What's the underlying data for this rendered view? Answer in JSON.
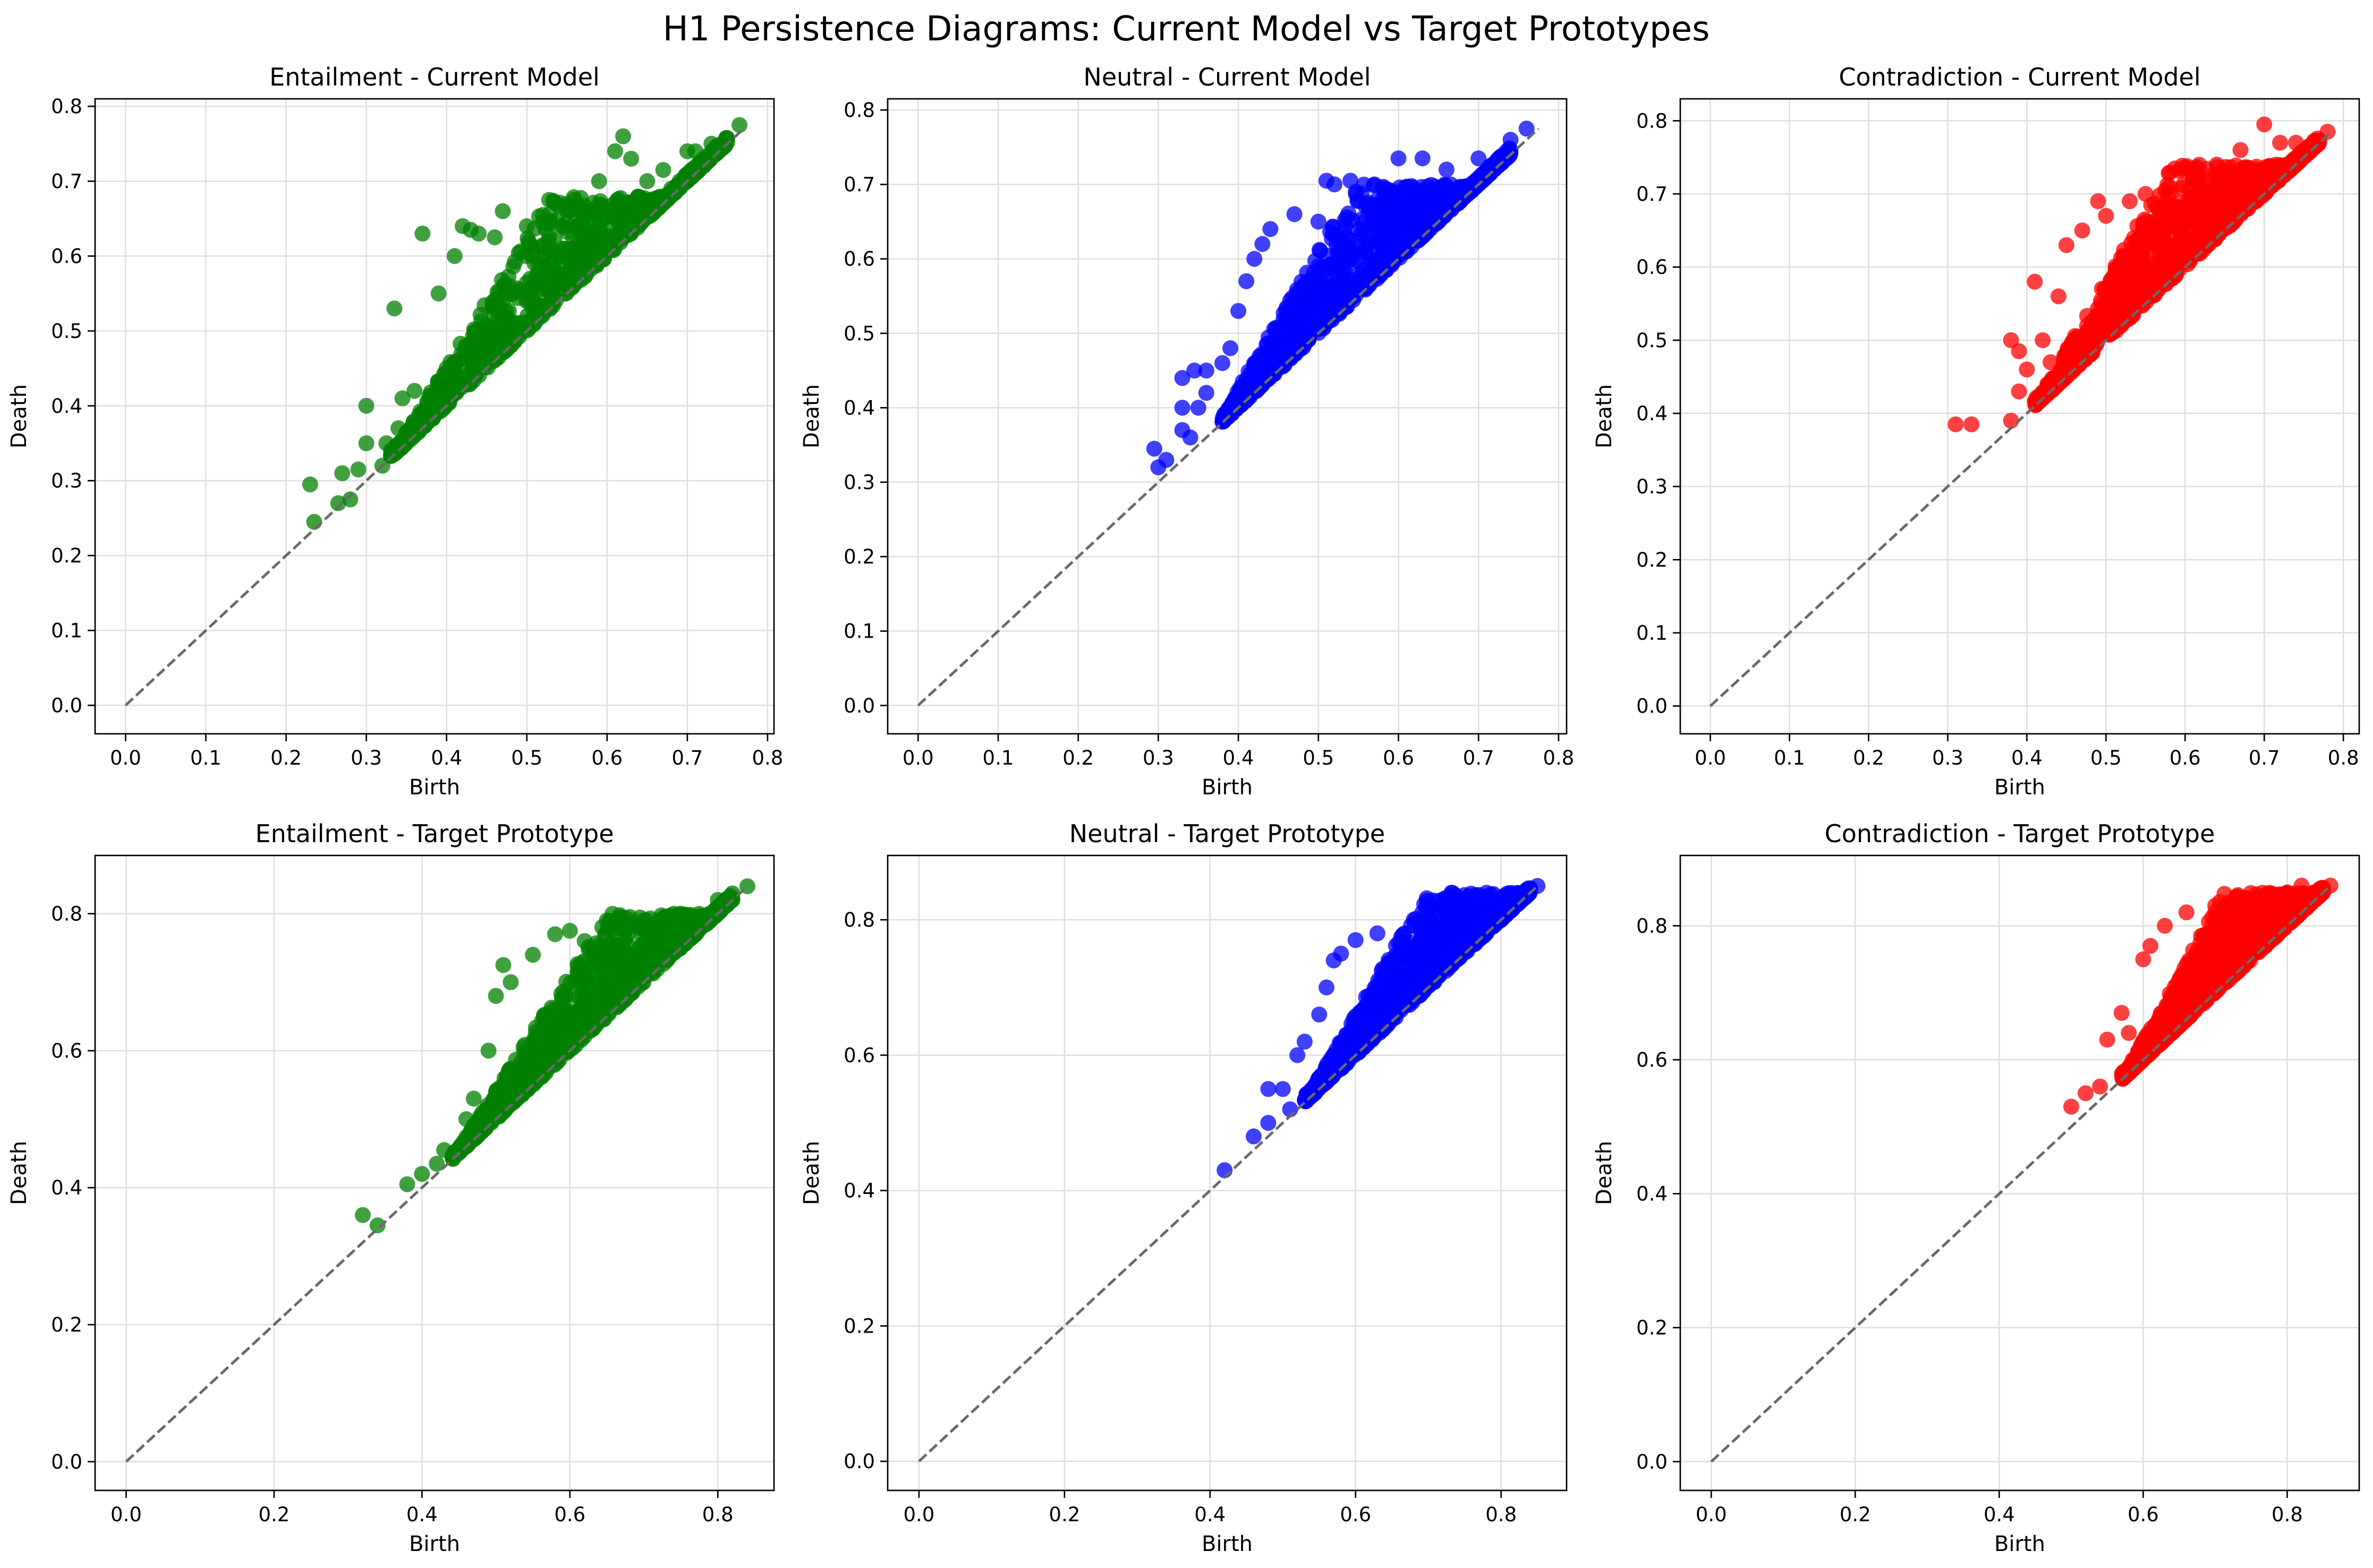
{
  "figure": {
    "title": "H1 Persistence Diagrams: Current Model vs Target Prototypes"
  },
  "colors": {
    "Entailment": "#008000",
    "Neutral": "#0000ff",
    "Contradiction": "#ff0000",
    "diagonal": "#696969",
    "grid": "#dedede"
  },
  "chart_data": [
    {
      "type": "scatter",
      "title": "Entailment - Current Model",
      "xlabel": "Birth",
      "ylabel": "Death",
      "xlim": [
        -0.038,
        0.808
      ],
      "ylim": [
        -0.038,
        0.81
      ],
      "xticks": [
        0.0,
        0.1,
        0.2,
        0.3,
        0.4,
        0.5,
        0.6,
        0.7,
        0.8
      ],
      "yticks": [
        0.0,
        0.1,
        0.2,
        0.3,
        0.4,
        0.5,
        0.6,
        0.7,
        0.8
      ],
      "tick_decimals": 1,
      "diagonal_max": 0.77,
      "grid": true,
      "series": [
        {
          "color_key": "Entailment",
          "points": [
            [
              0.23,
              0.295
            ],
            [
              0.235,
              0.245
            ],
            [
              0.265,
              0.27
            ],
            [
              0.28,
              0.275
            ],
            [
              0.27,
              0.31
            ],
            [
              0.29,
              0.315
            ],
            [
              0.3,
              0.35
            ],
            [
              0.32,
              0.32
            ],
            [
              0.325,
              0.35
            ],
            [
              0.3,
              0.4
            ],
            [
              0.34,
              0.37
            ],
            [
              0.345,
              0.41
            ],
            [
              0.36,
              0.42
            ],
            [
              0.335,
              0.53
            ],
            [
              0.37,
              0.63
            ],
            [
              0.39,
              0.55
            ],
            [
              0.4,
              0.45
            ],
            [
              0.41,
              0.6
            ],
            [
              0.42,
              0.64
            ],
            [
              0.43,
              0.635
            ],
            [
              0.44,
              0.63
            ],
            [
              0.46,
              0.625
            ],
            [
              0.47,
              0.66
            ],
            [
              0.5,
              0.64
            ],
            [
              0.52,
              0.655
            ],
            [
              0.55,
              0.67
            ],
            [
              0.57,
              0.66
            ],
            [
              0.59,
              0.7
            ],
            [
              0.61,
              0.74
            ],
            [
              0.62,
              0.76
            ],
            [
              0.63,
              0.73
            ],
            [
              0.65,
              0.7
            ],
            [
              0.67,
              0.715
            ],
            [
              0.68,
              0.69
            ],
            [
              0.7,
              0.74
            ],
            [
              0.71,
              0.74
            ],
            [
              0.73,
              0.75
            ],
            [
              0.765,
              0.775
            ]
          ],
          "cloud": {
            "x_range": [
              0.33,
              0.75
            ],
            "start": 0.33,
            "slope": 0.75,
            "cap": 0.68,
            "above_max": 0.16,
            "count": 900
          }
        }
      ]
    },
    {
      "type": "scatter",
      "title": "Neutral - Current Model",
      "xlabel": "Birth",
      "ylabel": "Death",
      "xlim": [
        -0.038,
        0.81
      ],
      "ylim": [
        -0.038,
        0.815
      ],
      "xticks": [
        0.0,
        0.1,
        0.2,
        0.3,
        0.4,
        0.5,
        0.6,
        0.7,
        0.8
      ],
      "yticks": [
        0.0,
        0.1,
        0.2,
        0.3,
        0.4,
        0.5,
        0.6,
        0.7,
        0.8
      ],
      "tick_decimals": 1,
      "diagonal_max": 0.775,
      "grid": true,
      "series": [
        {
          "color_key": "Neutral",
          "points": [
            [
              0.3,
              0.32
            ],
            [
              0.295,
              0.345
            ],
            [
              0.31,
              0.33
            ],
            [
              0.33,
              0.37
            ],
            [
              0.34,
              0.36
            ],
            [
              0.33,
              0.4
            ],
            [
              0.35,
              0.4
            ],
            [
              0.36,
              0.42
            ],
            [
              0.33,
              0.44
            ],
            [
              0.345,
              0.45
            ],
            [
              0.36,
              0.45
            ],
            [
              0.38,
              0.46
            ],
            [
              0.39,
              0.48
            ],
            [
              0.4,
              0.53
            ],
            [
              0.41,
              0.57
            ],
            [
              0.42,
              0.6
            ],
            [
              0.43,
              0.62
            ],
            [
              0.44,
              0.64
            ],
            [
              0.47,
              0.66
            ],
            [
              0.5,
              0.65
            ],
            [
              0.51,
              0.705
            ],
            [
              0.52,
              0.7
            ],
            [
              0.54,
              0.705
            ],
            [
              0.57,
              0.7
            ],
            [
              0.6,
              0.735
            ],
            [
              0.63,
              0.735
            ],
            [
              0.66,
              0.72
            ],
            [
              0.7,
              0.735
            ],
            [
              0.74,
              0.76
            ],
            [
              0.76,
              0.775
            ]
          ],
          "cloud": {
            "x_range": [
              0.38,
              0.74
            ],
            "start": 0.37,
            "slope": 0.85,
            "cap": 0.7,
            "above_max": 0.2,
            "count": 1000
          }
        }
      ]
    },
    {
      "type": "scatter",
      "title": "Contradiction - Current Model",
      "xlabel": "Birth",
      "ylabel": "Death",
      "xlim": [
        -0.038,
        0.82
      ],
      "ylim": [
        -0.038,
        0.83
      ],
      "xticks": [
        0.0,
        0.1,
        0.2,
        0.3,
        0.4,
        0.5,
        0.6,
        0.7,
        0.8
      ],
      "yticks": [
        0.0,
        0.1,
        0.2,
        0.3,
        0.4,
        0.5,
        0.6,
        0.7,
        0.8
      ],
      "tick_decimals": 1,
      "diagonal_max": 0.785,
      "grid": true,
      "series": [
        {
          "color_key": "Contradiction",
          "points": [
            [
              0.31,
              0.385
            ],
            [
              0.33,
              0.385
            ],
            [
              0.38,
              0.39
            ],
            [
              0.39,
              0.43
            ],
            [
              0.38,
              0.5
            ],
            [
              0.39,
              0.485
            ],
            [
              0.4,
              0.46
            ],
            [
              0.41,
              0.58
            ],
            [
              0.42,
              0.5
            ],
            [
              0.43,
              0.47
            ],
            [
              0.44,
              0.56
            ],
            [
              0.45,
              0.63
            ],
            [
              0.47,
              0.65
            ],
            [
              0.49,
              0.69
            ],
            [
              0.5,
              0.67
            ],
            [
              0.53,
              0.69
            ],
            [
              0.55,
              0.7
            ],
            [
              0.58,
              0.71
            ],
            [
              0.61,
              0.72
            ],
            [
              0.64,
              0.74
            ],
            [
              0.67,
              0.76
            ],
            [
              0.7,
              0.795
            ],
            [
              0.72,
              0.77
            ],
            [
              0.74,
              0.77
            ],
            [
              0.78,
              0.785
            ]
          ],
          "cloud": {
            "x_range": [
              0.41,
              0.77
            ],
            "start": 0.41,
            "slope": 0.9,
            "cap": 0.74,
            "above_max": 0.24,
            "count": 1100
          }
        }
      ]
    },
    {
      "type": "scatter",
      "title": "Entailment - Target Prototype",
      "xlabel": "Birth",
      "ylabel": "Death",
      "xlim": [
        -0.042,
        0.876
      ],
      "ylim": [
        -0.042,
        0.885
      ],
      "xticks": [
        0.0,
        0.2,
        0.4,
        0.6,
        0.8
      ],
      "yticks": [
        0.0,
        0.2,
        0.4,
        0.6,
        0.8
      ],
      "tick_decimals": 1,
      "diagonal_max": 0.84,
      "grid": true,
      "series": [
        {
          "color_key": "Entailment",
          "points": [
            [
              0.32,
              0.36
            ],
            [
              0.34,
              0.345
            ],
            [
              0.38,
              0.405
            ],
            [
              0.4,
              0.42
            ],
            [
              0.42,
              0.435
            ],
            [
              0.43,
              0.455
            ],
            [
              0.46,
              0.5
            ],
            [
              0.47,
              0.53
            ],
            [
              0.49,
              0.6
            ],
            [
              0.5,
              0.68
            ],
            [
              0.51,
              0.725
            ],
            [
              0.52,
              0.7
            ],
            [
              0.55,
              0.74
            ],
            [
              0.58,
              0.77
            ],
            [
              0.6,
              0.775
            ],
            [
              0.62,
              0.76
            ],
            [
              0.65,
              0.79
            ],
            [
              0.67,
              0.795
            ],
            [
              0.7,
              0.79
            ],
            [
              0.75,
              0.8
            ],
            [
              0.8,
              0.82
            ],
            [
              0.84,
              0.84
            ]
          ],
          "cloud": {
            "x_range": [
              0.44,
              0.82
            ],
            "start": 0.44,
            "slope": 0.7,
            "cap": 0.8,
            "above_max": 0.16,
            "count": 1000
          }
        }
      ]
    },
    {
      "type": "scatter",
      "title": "Neutral - Target Prototype",
      "xlabel": "Birth",
      "ylabel": "Death",
      "xlim": [
        -0.043,
        0.89
      ],
      "ylim": [
        -0.043,
        0.895
      ],
      "xticks": [
        0.0,
        0.2,
        0.4,
        0.6,
        0.8
      ],
      "yticks": [
        0.0,
        0.2,
        0.4,
        0.6,
        0.8
      ],
      "tick_decimals": 1,
      "diagonal_max": 0.85,
      "grid": true,
      "series": [
        {
          "color_key": "Neutral",
          "points": [
            [
              0.42,
              0.43
            ],
            [
              0.46,
              0.48
            ],
            [
              0.48,
              0.5
            ],
            [
              0.48,
              0.55
            ],
            [
              0.5,
              0.55
            ],
            [
              0.51,
              0.52
            ],
            [
              0.52,
              0.6
            ],
            [
              0.53,
              0.62
            ],
            [
              0.55,
              0.66
            ],
            [
              0.56,
              0.7
            ],
            [
              0.57,
              0.74
            ],
            [
              0.58,
              0.75
            ],
            [
              0.6,
              0.77
            ],
            [
              0.63,
              0.78
            ],
            [
              0.68,
              0.8
            ],
            [
              0.72,
              0.82
            ],
            [
              0.78,
              0.84
            ],
            [
              0.85,
              0.85
            ]
          ],
          "cloud": {
            "x_range": [
              0.53,
              0.84
            ],
            "start": 0.53,
            "slope": 0.85,
            "cap": 0.84,
            "above_max": 0.2,
            "count": 1000
          }
        }
      ]
    },
    {
      "type": "scatter",
      "title": "Contradiction - Target Prototype",
      "xlabel": "Birth",
      "ylabel": "Death",
      "xlim": [
        -0.043,
        0.9
      ],
      "ylim": [
        -0.043,
        0.905
      ],
      "xticks": [
        0.0,
        0.2,
        0.4,
        0.6,
        0.8
      ],
      "yticks": [
        0.0,
        0.2,
        0.4,
        0.6,
        0.8
      ],
      "tick_decimals": 1,
      "diagonal_max": 0.86,
      "grid": true,
      "series": [
        {
          "color_key": "Contradiction",
          "points": [
            [
              0.5,
              0.53
            ],
            [
              0.52,
              0.55
            ],
            [
              0.54,
              0.56
            ],
            [
              0.55,
              0.63
            ],
            [
              0.57,
              0.67
            ],
            [
              0.58,
              0.64
            ],
            [
              0.6,
              0.75
            ],
            [
              0.61,
              0.77
            ],
            [
              0.63,
              0.8
            ],
            [
              0.66,
              0.82
            ],
            [
              0.7,
              0.83
            ],
            [
              0.75,
              0.84
            ],
            [
              0.8,
              0.85
            ],
            [
              0.82,
              0.86
            ],
            [
              0.86,
              0.86
            ]
          ],
          "cloud": {
            "x_range": [
              0.57,
              0.85
            ],
            "start": 0.57,
            "slope": 0.95,
            "cap": 0.85,
            "above_max": 0.23,
            "count": 1000
          }
        }
      ]
    }
  ]
}
